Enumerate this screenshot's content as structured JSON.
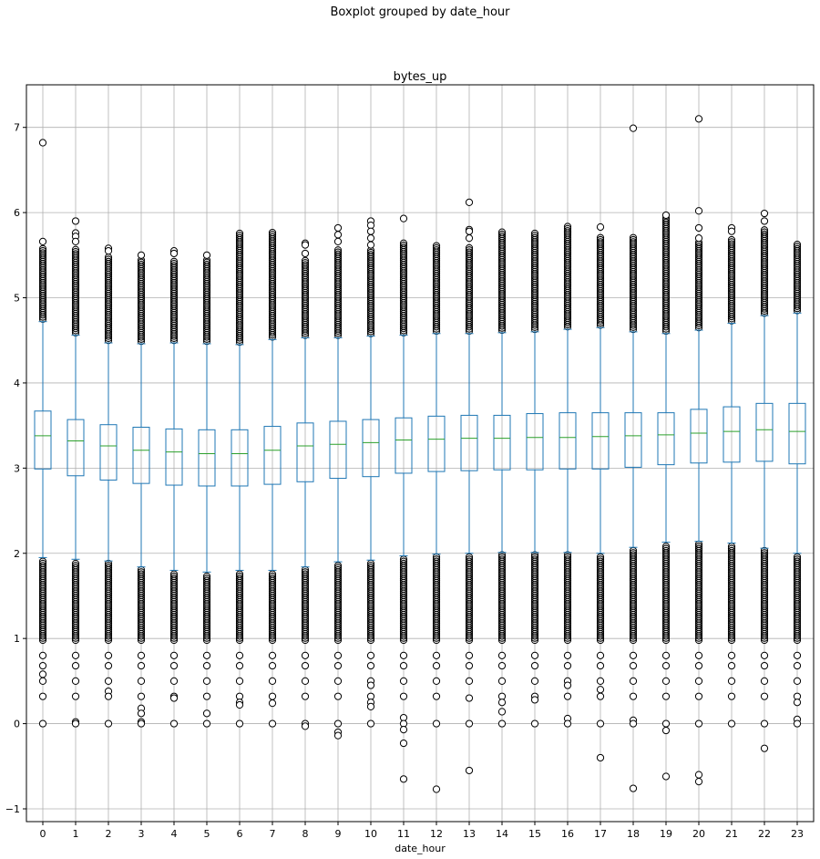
{
  "chart_data": {
    "type": "boxplot",
    "suptitle": "Boxplot grouped by date_hour",
    "title": "bytes_up",
    "xlabel": "date_hour",
    "ylabel": "",
    "ylim": [
      -1.15,
      7.5
    ],
    "yticks": [
      -1,
      0,
      1,
      2,
      3,
      4,
      5,
      6,
      7
    ],
    "ytick_labels": [
      "−1",
      "0",
      "1",
      "2",
      "3",
      "4",
      "5",
      "6",
      "7"
    ],
    "grid": true,
    "colors": {
      "box": "#1f77b4",
      "median": "#2ca02c",
      "flier": "#000000",
      "grid": "#b0b0b0"
    },
    "categories": [
      "0",
      "1",
      "2",
      "3",
      "4",
      "5",
      "6",
      "7",
      "8",
      "9",
      "10",
      "11",
      "12",
      "13",
      "14",
      "15",
      "16",
      "17",
      "18",
      "19",
      "20",
      "21",
      "22",
      "23"
    ],
    "boxes": [
      {
        "q1": 2.99,
        "median": 3.38,
        "q3": 3.67,
        "whisker_low": 1.95,
        "whisker_high": 4.72,
        "flier_high_max": 5.58,
        "flier_low_min": 0.98,
        "extra_fliers": [
          6.82,
          5.66,
          0.8,
          0.68,
          0.58,
          0.5,
          0.32,
          0.0
        ]
      },
      {
        "q1": 2.91,
        "median": 3.32,
        "q3": 3.57,
        "whisker_low": 1.93,
        "whisker_high": 4.56,
        "flier_high_max": 5.58,
        "flier_low_min": 0.98,
        "extra_fliers": [
          5.9,
          5.76,
          5.72,
          5.66,
          0.8,
          0.68,
          0.5,
          0.32,
          0.02,
          0.0
        ]
      },
      {
        "q1": 2.86,
        "median": 3.26,
        "q3": 3.51,
        "whisker_low": 1.91,
        "whisker_high": 4.47,
        "flier_high_max": 5.5,
        "flier_low_min": 0.98,
        "extra_fliers": [
          5.58,
          5.55,
          0.8,
          0.68,
          0.5,
          0.38,
          0.32,
          0.0
        ]
      },
      {
        "q1": 2.82,
        "median": 3.21,
        "q3": 3.48,
        "whisker_low": 1.84,
        "whisker_high": 4.46,
        "flier_high_max": 5.45,
        "flier_low_min": 0.98,
        "extra_fliers": [
          5.5,
          0.8,
          0.68,
          0.5,
          0.32,
          0.18,
          0.12,
          0.02,
          0.0
        ]
      },
      {
        "q1": 2.8,
        "median": 3.19,
        "q3": 3.46,
        "whisker_low": 1.8,
        "whisker_high": 4.47,
        "flier_high_max": 5.45,
        "flier_low_min": 0.98,
        "extra_fliers": [
          5.55,
          5.52,
          0.8,
          0.68,
          0.5,
          0.32,
          0.3,
          0.0
        ]
      },
      {
        "q1": 2.79,
        "median": 3.17,
        "q3": 3.45,
        "whisker_low": 1.78,
        "whisker_high": 4.46,
        "flier_high_max": 5.45,
        "flier_low_min": 0.98,
        "extra_fliers": [
          5.5,
          0.8,
          0.68,
          0.5,
          0.32,
          0.12,
          0.0
        ]
      },
      {
        "q1": 2.79,
        "median": 3.17,
        "q3": 3.45,
        "whisker_low": 1.8,
        "whisker_high": 4.45,
        "flier_high_max": 5.76,
        "flier_low_min": 0.98,
        "extra_fliers": [
          0.8,
          0.68,
          0.5,
          0.32,
          0.25,
          0.22,
          0.0
        ]
      },
      {
        "q1": 2.81,
        "median": 3.21,
        "q3": 3.49,
        "whisker_low": 1.8,
        "whisker_high": 4.51,
        "flier_high_max": 5.78,
        "flier_low_min": 0.98,
        "extra_fliers": [
          0.8,
          0.68,
          0.5,
          0.32,
          0.24,
          0.0
        ]
      },
      {
        "q1": 2.84,
        "median": 3.26,
        "q3": 3.53,
        "whisker_low": 1.84,
        "whisker_high": 4.53,
        "flier_high_max": 5.45,
        "flier_low_min": 0.98,
        "extra_fliers": [
          5.64,
          5.62,
          5.52,
          0.8,
          0.68,
          0.5,
          0.32,
          0.0,
          -0.03
        ]
      },
      {
        "q1": 2.88,
        "median": 3.28,
        "q3": 3.55,
        "whisker_low": 1.9,
        "whisker_high": 4.53,
        "flier_high_max": 5.58,
        "flier_low_min": 0.98,
        "extra_fliers": [
          5.82,
          5.74,
          5.66,
          0.8,
          0.68,
          0.5,
          0.32,
          0.0,
          -0.1,
          -0.14
        ]
      },
      {
        "q1": 2.9,
        "median": 3.3,
        "q3": 3.57,
        "whisker_low": 1.92,
        "whisker_high": 4.55,
        "flier_high_max": 5.58,
        "flier_low_min": 0.98,
        "extra_fliers": [
          5.9,
          5.85,
          5.78,
          5.7,
          5.62,
          0.8,
          0.68,
          0.5,
          0.45,
          0.32,
          0.25,
          0.2,
          0.0
        ]
      },
      {
        "q1": 2.94,
        "median": 3.33,
        "q3": 3.59,
        "whisker_low": 1.97,
        "whisker_high": 4.56,
        "flier_high_max": 5.65,
        "flier_low_min": 0.98,
        "extra_fliers": [
          5.93,
          0.8,
          0.68,
          0.5,
          0.32,
          0.07,
          0.0,
          -0.07,
          -0.23,
          -0.65
        ]
      },
      {
        "q1": 2.96,
        "median": 3.34,
        "q3": 3.61,
        "whisker_low": 1.99,
        "whisker_high": 4.58,
        "flier_high_max": 5.63,
        "flier_low_min": 0.98,
        "extra_fliers": [
          0.8,
          0.68,
          0.5,
          0.32,
          0.0,
          -0.77
        ]
      },
      {
        "q1": 2.97,
        "median": 3.35,
        "q3": 3.62,
        "whisker_low": 2.0,
        "whisker_high": 4.58,
        "flier_high_max": 5.6,
        "flier_low_min": 0.98,
        "extra_fliers": [
          6.12,
          5.8,
          5.78,
          5.7,
          0.8,
          0.68,
          0.5,
          0.3,
          0.0,
          -0.55
        ]
      },
      {
        "q1": 2.98,
        "median": 3.35,
        "q3": 3.62,
        "whisker_low": 2.01,
        "whisker_high": 4.59,
        "flier_high_max": 5.79,
        "flier_low_min": 0.98,
        "extra_fliers": [
          0.8,
          0.68,
          0.5,
          0.32,
          0.25,
          0.14,
          0.0
        ]
      },
      {
        "q1": 2.98,
        "median": 3.36,
        "q3": 3.64,
        "whisker_low": 2.01,
        "whisker_high": 4.6,
        "flier_high_max": 5.78,
        "flier_low_min": 0.98,
        "extra_fliers": [
          0.8,
          0.68,
          0.5,
          0.32,
          0.28,
          0.0
        ]
      },
      {
        "q1": 2.99,
        "median": 3.36,
        "q3": 3.65,
        "whisker_low": 2.01,
        "whisker_high": 4.63,
        "flier_high_max": 5.84,
        "flier_low_min": 0.98,
        "extra_fliers": [
          0.8,
          0.68,
          0.5,
          0.45,
          0.32,
          0.06,
          0.0
        ]
      },
      {
        "q1": 2.99,
        "median": 3.37,
        "q3": 3.65,
        "whisker_low": 2.0,
        "whisker_high": 4.65,
        "flier_high_max": 5.72,
        "flier_low_min": 0.98,
        "extra_fliers": [
          5.83,
          0.8,
          0.68,
          0.5,
          0.4,
          0.32,
          0.0,
          -0.4
        ]
      },
      {
        "q1": 3.01,
        "median": 3.38,
        "q3": 3.65,
        "whisker_low": 2.07,
        "whisker_high": 4.6,
        "flier_high_max": 5.72,
        "flier_low_min": 0.98,
        "extra_fliers": [
          6.99,
          0.8,
          0.68,
          0.5,
          0.32,
          0.04,
          0.0,
          -0.76
        ]
      },
      {
        "q1": 3.04,
        "median": 3.39,
        "q3": 3.65,
        "whisker_low": 2.13,
        "whisker_high": 4.58,
        "flier_high_max": 5.94,
        "flier_low_min": 0.98,
        "extra_fliers": [
          5.97,
          0.8,
          0.68,
          0.5,
          0.32,
          0.0,
          -0.08,
          -0.62
        ]
      },
      {
        "q1": 3.06,
        "median": 3.41,
        "q3": 3.69,
        "whisker_low": 2.14,
        "whisker_high": 4.62,
        "flier_high_max": 5.66,
        "flier_low_min": 0.98,
        "extra_fliers": [
          7.1,
          6.02,
          5.82,
          5.7,
          0.8,
          0.68,
          0.5,
          0.32,
          0.0,
          -0.6,
          -0.68
        ]
      },
      {
        "q1": 3.07,
        "median": 3.43,
        "q3": 3.72,
        "whisker_low": 2.12,
        "whisker_high": 4.7,
        "flier_high_max": 5.7,
        "flier_low_min": 0.98,
        "extra_fliers": [
          5.82,
          5.78,
          0.8,
          0.68,
          0.5,
          0.32,
          0.0
        ]
      },
      {
        "q1": 3.08,
        "median": 3.45,
        "q3": 3.76,
        "whisker_low": 2.06,
        "whisker_high": 4.79,
        "flier_high_max": 5.8,
        "flier_low_min": 0.98,
        "extra_fliers": [
          5.99,
          5.9,
          0.8,
          0.68,
          0.5,
          0.32,
          0.0,
          -0.29
        ]
      },
      {
        "q1": 3.05,
        "median": 3.43,
        "q3": 3.76,
        "whisker_low": 2.0,
        "whisker_high": 4.82,
        "flier_high_max": 5.65,
        "flier_low_min": 0.98,
        "extra_fliers": [
          0.8,
          0.68,
          0.5,
          0.32,
          0.25,
          0.05,
          0.0
        ]
      }
    ]
  }
}
